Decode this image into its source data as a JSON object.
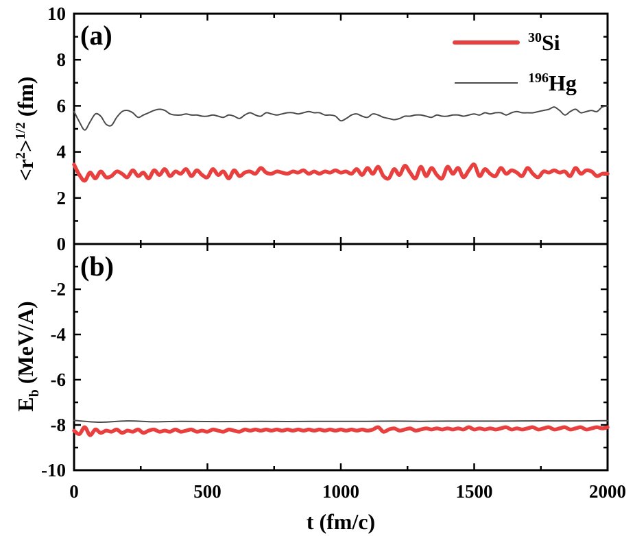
{
  "chart_data": [
    {
      "type": "line",
      "panel_label": "(a)",
      "xlabel": "t (fm/c)",
      "ylabel_parts": [
        "<r",
        "2",
        ">",
        "1/2",
        " (fm)"
      ],
      "xlim": [
        0,
        2000
      ],
      "ylim": [
        0,
        10
      ],
      "xticks": [
        0,
        500,
        1000,
        1500,
        2000
      ],
      "yticks": [
        0,
        2,
        4,
        6,
        8,
        10
      ],
      "legend": {
        "position": "top-right"
      },
      "series": [
        {
          "name": "30Si",
          "mass": "30",
          "symbol": "Si",
          "color": "#e8403f",
          "width": "thick",
          "x": [
            0,
            20,
            40,
            60,
            80,
            100,
            120,
            140,
            160,
            180,
            200,
            220,
            240,
            260,
            280,
            300,
            320,
            340,
            360,
            380,
            400,
            420,
            440,
            460,
            480,
            500,
            520,
            540,
            560,
            580,
            600,
            620,
            640,
            660,
            680,
            700,
            720,
            740,
            760,
            780,
            800,
            820,
            840,
            860,
            880,
            900,
            920,
            940,
            960,
            980,
            1000,
            1020,
            1040,
            1060,
            1080,
            1100,
            1120,
            1140,
            1160,
            1180,
            1200,
            1220,
            1240,
            1260,
            1280,
            1300,
            1320,
            1340,
            1360,
            1380,
            1400,
            1420,
            1440,
            1460,
            1480,
            1500,
            1520,
            1540,
            1560,
            1580,
            1600,
            1620,
            1640,
            1660,
            1680,
            1700,
            1720,
            1740,
            1760,
            1780,
            1800,
            1820,
            1840,
            1860,
            1880,
            1900,
            1920,
            1940,
            1960,
            1980,
            2000
          ],
          "y": [
            3.45,
            3.0,
            2.75,
            3.1,
            2.85,
            3.15,
            2.9,
            2.95,
            3.15,
            3.05,
            2.9,
            3.2,
            2.95,
            3.1,
            2.85,
            3.2,
            3.0,
            3.25,
            2.95,
            3.15,
            3.05,
            3.25,
            2.95,
            3.2,
            3.0,
            2.9,
            3.25,
            3.0,
            3.15,
            2.85,
            3.2,
            2.95,
            3.1,
            3.15,
            3.05,
            3.3,
            3.1,
            3.05,
            3.15,
            3.1,
            3.05,
            3.15,
            3.1,
            3.2,
            3.05,
            3.15,
            3.05,
            3.15,
            3.1,
            3.2,
            3.1,
            3.15,
            3.05,
            3.25,
            3.0,
            3.3,
            3.05,
            3.35,
            2.95,
            2.85,
            3.25,
            3.0,
            3.4,
            3.1,
            2.85,
            3.35,
            2.95,
            3.3,
            3.0,
            2.85,
            3.35,
            3.05,
            3.3,
            2.9,
            3.2,
            3.45,
            2.95,
            3.25,
            3.05,
            2.95,
            3.3,
            3.05,
            3.2,
            3.1,
            2.95,
            3.3,
            3.05,
            2.9,
            3.15,
            3.1,
            3.2,
            3.1,
            3.15,
            2.95,
            3.3,
            3.05,
            3.2,
            3.15,
            2.95,
            3.05,
            3.05
          ]
        },
        {
          "name": "196Hg",
          "mass": "196",
          "symbol": "Hg",
          "color": "#4a4a4a",
          "width": "thin",
          "x": [
            0,
            20,
            40,
            60,
            80,
            100,
            120,
            140,
            160,
            180,
            200,
            220,
            240,
            260,
            280,
            300,
            320,
            340,
            360,
            380,
            400,
            420,
            440,
            460,
            480,
            500,
            520,
            540,
            560,
            580,
            600,
            620,
            640,
            660,
            680,
            700,
            720,
            740,
            760,
            780,
            800,
            820,
            840,
            860,
            880,
            900,
            920,
            940,
            960,
            980,
            1000,
            1020,
            1040,
            1060,
            1080,
            1100,
            1120,
            1140,
            1160,
            1180,
            1200,
            1220,
            1240,
            1260,
            1280,
            1300,
            1320,
            1340,
            1360,
            1380,
            1400,
            1420,
            1440,
            1460,
            1480,
            1500,
            1520,
            1540,
            1560,
            1580,
            1600,
            1620,
            1640,
            1660,
            1680,
            1700,
            1720,
            1740,
            1760,
            1780,
            1800,
            1820,
            1840,
            1860,
            1880,
            1900,
            1920,
            1940,
            1960,
            1980,
            2000
          ],
          "y": [
            5.75,
            5.3,
            4.95,
            5.3,
            5.65,
            5.55,
            5.2,
            5.15,
            5.5,
            5.75,
            5.8,
            5.7,
            5.5,
            5.6,
            5.7,
            5.8,
            5.85,
            5.8,
            5.65,
            5.6,
            5.6,
            5.65,
            5.6,
            5.6,
            5.55,
            5.55,
            5.6,
            5.55,
            5.5,
            5.6,
            5.55,
            5.45,
            5.6,
            5.7,
            5.6,
            5.55,
            5.7,
            5.65,
            5.6,
            5.65,
            5.7,
            5.7,
            5.65,
            5.7,
            5.75,
            5.7,
            5.7,
            5.6,
            5.6,
            5.55,
            5.35,
            5.45,
            5.6,
            5.65,
            5.55,
            5.5,
            5.65,
            5.6,
            5.5,
            5.45,
            5.4,
            5.45,
            5.55,
            5.55,
            5.6,
            5.6,
            5.55,
            5.5,
            5.6,
            5.55,
            5.55,
            5.6,
            5.6,
            5.55,
            5.6,
            5.65,
            5.6,
            5.7,
            5.65,
            5.7,
            5.7,
            5.6,
            5.7,
            5.75,
            5.7,
            5.7,
            5.7,
            5.75,
            5.8,
            5.85,
            5.95,
            5.8,
            5.6,
            5.75,
            5.85,
            5.7,
            5.75,
            5.8,
            5.75,
            5.95,
            6.0
          ]
        }
      ]
    },
    {
      "type": "line",
      "panel_label": "(b)",
      "xlabel": "t (fm/c)",
      "ylabel_parts": [
        "E",
        "b",
        " (MeV/A)"
      ],
      "xlim": [
        0,
        2000
      ],
      "ylim": [
        -10,
        0
      ],
      "xticks": [
        0,
        500,
        1000,
        1500,
        2000
      ],
      "yticks": [
        -10,
        -8,
        -6,
        -4,
        -2
      ],
      "series": [
        {
          "name": "30Si",
          "color": "#e8403f",
          "width": "thick",
          "x": [
            0,
            20,
            40,
            60,
            80,
            100,
            120,
            140,
            160,
            180,
            200,
            220,
            240,
            260,
            280,
            300,
            320,
            340,
            360,
            380,
            400,
            420,
            440,
            460,
            480,
            500,
            520,
            540,
            560,
            580,
            600,
            620,
            640,
            660,
            680,
            700,
            720,
            740,
            760,
            780,
            800,
            820,
            840,
            860,
            880,
            900,
            920,
            940,
            960,
            980,
            1000,
            1020,
            1040,
            1060,
            1080,
            1100,
            1120,
            1140,
            1160,
            1180,
            1200,
            1220,
            1240,
            1260,
            1280,
            1300,
            1320,
            1340,
            1360,
            1380,
            1400,
            1420,
            1440,
            1460,
            1480,
            1500,
            1520,
            1540,
            1560,
            1580,
            1600,
            1620,
            1640,
            1660,
            1680,
            1700,
            1720,
            1740,
            1760,
            1780,
            1800,
            1820,
            1840,
            1860,
            1880,
            1900,
            1920,
            1940,
            1960,
            1980,
            2000
          ],
          "y": [
            -8.25,
            -8.4,
            -8.1,
            -8.45,
            -8.2,
            -8.35,
            -8.25,
            -8.3,
            -8.2,
            -8.35,
            -8.25,
            -8.3,
            -8.2,
            -8.35,
            -8.25,
            -8.2,
            -8.3,
            -8.25,
            -8.3,
            -8.2,
            -8.3,
            -8.25,
            -8.2,
            -8.3,
            -8.25,
            -8.3,
            -8.2,
            -8.25,
            -8.3,
            -8.2,
            -8.25,
            -8.3,
            -8.2,
            -8.25,
            -8.2,
            -8.25,
            -8.2,
            -8.25,
            -8.2,
            -8.25,
            -8.2,
            -8.25,
            -8.2,
            -8.25,
            -8.2,
            -8.25,
            -8.2,
            -8.25,
            -8.2,
            -8.25,
            -8.2,
            -8.25,
            -8.2,
            -8.25,
            -8.2,
            -8.25,
            -8.2,
            -8.1,
            -8.3,
            -8.2,
            -8.15,
            -8.25,
            -8.2,
            -8.15,
            -8.25,
            -8.2,
            -8.15,
            -8.2,
            -8.15,
            -8.2,
            -8.15,
            -8.2,
            -8.15,
            -8.2,
            -8.1,
            -8.2,
            -8.15,
            -8.2,
            -8.15,
            -8.2,
            -8.15,
            -8.1,
            -8.2,
            -8.15,
            -8.2,
            -8.15,
            -8.1,
            -8.2,
            -8.15,
            -8.1,
            -8.2,
            -8.15,
            -8.1,
            -8.2,
            -8.15,
            -8.1,
            -8.2,
            -8.15,
            -8.1,
            -8.15,
            -8.1
          ]
        },
        {
          "name": "196Hg",
          "color": "#4a4a4a",
          "width": "thin",
          "x": [
            0,
            100,
            200,
            300,
            400,
            500,
            600,
            700,
            800,
            900,
            1000,
            1100,
            1200,
            1300,
            1400,
            1500,
            1600,
            1700,
            1800,
            1900,
            2000
          ],
          "y": [
            -7.8,
            -7.88,
            -7.82,
            -7.86,
            -7.84,
            -7.85,
            -7.85,
            -7.84,
            -7.85,
            -7.84,
            -7.84,
            -7.84,
            -7.83,
            -7.84,
            -7.83,
            -7.83,
            -7.83,
            -7.82,
            -7.82,
            -7.82,
            -7.81
          ]
        }
      ]
    }
  ]
}
